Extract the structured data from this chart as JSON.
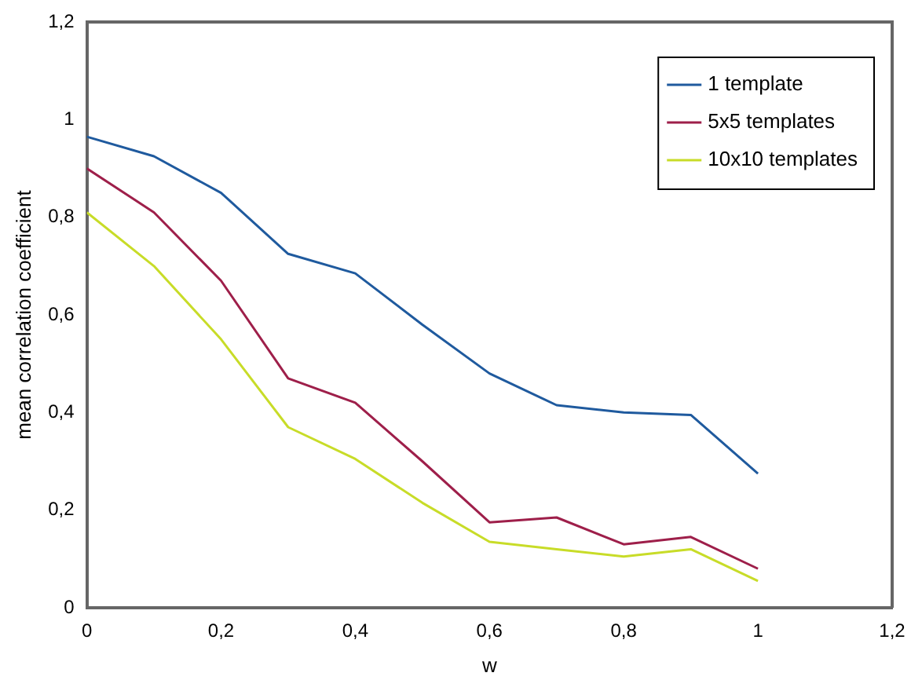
{
  "chart_data": {
    "type": "line",
    "xlabel": "w",
    "ylabel": "mean correlation coefficient",
    "x": [
      0,
      0.1,
      0.2,
      0.3,
      0.4,
      0.5,
      0.6,
      0.7,
      0.8,
      0.9,
      1
    ],
    "series": [
      {
        "name": "1 template",
        "color": "#1f5a9e",
        "values": [
          0.965,
          0.925,
          0.85,
          0.725,
          0.685,
          0.58,
          0.48,
          0.415,
          0.4,
          0.395,
          0.275
        ]
      },
      {
        "name": "5x5 templates",
        "color": "#9e1f4a",
        "values": [
          0.9,
          0.81,
          0.67,
          0.47,
          0.42,
          0.3,
          0.175,
          0.185,
          0.13,
          0.145,
          0.08
        ]
      },
      {
        "name": "10x10 templates",
        "color": "#c8dc28",
        "values": [
          0.81,
          0.7,
          0.55,
          0.37,
          0.305,
          0.215,
          0.135,
          0.12,
          0.105,
          0.12,
          0.055
        ]
      }
    ],
    "xlim": [
      0,
      1.2
    ],
    "ylim": [
      0,
      1.2
    ],
    "xticks": [
      0,
      {
        "value": 0.2,
        "label": "0,2"
      },
      {
        "value": 0.4,
        "label": "0,4"
      },
      {
        "value": 0.6,
        "label": "0,6"
      },
      {
        "value": 0.8,
        "label": "0,8"
      },
      1,
      {
        "value": 1.2,
        "label": "1,2"
      }
    ],
    "yticks": [
      0,
      {
        "value": 0.2,
        "label": "0,2"
      },
      {
        "value": 0.4,
        "label": "0,4"
      },
      {
        "value": 0.6,
        "label": "0,6"
      },
      {
        "value": 0.8,
        "label": "0,8"
      },
      1,
      {
        "value": 1.2,
        "label": "1,2"
      }
    ],
    "grid": false,
    "legend": "top right",
    "marker": "none",
    "line_style": "solid"
  }
}
